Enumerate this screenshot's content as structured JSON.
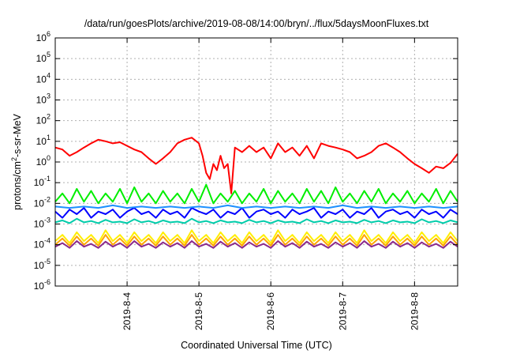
{
  "chart_data": {
    "type": "line",
    "title": "/data/run/goesPlots/archive/2019-08-08/14:00/bryn/../flux/5daysMoonFluxes.txt",
    "xlabel": "Coordinated Universal Time (UTC)",
    "ylabel": "protons/cm²-s-sr-MeV",
    "ylabel_parts": {
      "pre": "protons/cm",
      "sup": "2",
      "post": "-s-sr-MeV"
    },
    "yscale": "log",
    "ylim": [
      1e-06,
      1000000.0
    ],
    "xlim": [
      3.0,
      8.6
    ],
    "y_ticks": [
      {
        "value": 1e-06,
        "base": "10",
        "exp": "-6"
      },
      {
        "value": 1e-05,
        "base": "10",
        "exp": "-5"
      },
      {
        "value": 0.0001,
        "base": "10",
        "exp": "-4"
      },
      {
        "value": 0.001,
        "base": "10",
        "exp": "-3"
      },
      {
        "value": 0.01,
        "base": "10",
        "exp": "-2"
      },
      {
        "value": 0.1,
        "base": "10",
        "exp": "-1"
      },
      {
        "value": 1,
        "base": "10",
        "exp": "0"
      },
      {
        "value": 10,
        "base": "10",
        "exp": "1"
      },
      {
        "value": 100,
        "base": "10",
        "exp": "2"
      },
      {
        "value": 1000,
        "base": "10",
        "exp": "3"
      },
      {
        "value": 10000,
        "base": "10",
        "exp": "4"
      },
      {
        "value": 100000,
        "base": "10",
        "exp": "5"
      },
      {
        "value": 1000000,
        "base": "10",
        "exp": "6"
      }
    ],
    "x_ticks": [
      {
        "value": 4,
        "label": "2019-8-4"
      },
      {
        "value": 5,
        "label": "2019-8-5"
      },
      {
        "value": 6,
        "label": "2019-8-6"
      },
      {
        "value": 7,
        "label": "2019-8-7"
      },
      {
        "value": 8,
        "label": "2019-8-8"
      }
    ],
    "grid": true,
    "series": [
      {
        "color": "#ff0000",
        "x": [
          3.0,
          3.1,
          3.2,
          3.3,
          3.4,
          3.5,
          3.6,
          3.7,
          3.8,
          3.9,
          4.0,
          4.1,
          4.2,
          4.3,
          4.4,
          4.5,
          4.6,
          4.7,
          4.8,
          4.9,
          5.0,
          5.05,
          5.1,
          5.15,
          5.2,
          5.25,
          5.3,
          5.35,
          5.4,
          5.45,
          5.5,
          5.6,
          5.7,
          5.8,
          5.9,
          6.0,
          6.1,
          6.2,
          6.3,
          6.4,
          6.5,
          6.6,
          6.7,
          6.8,
          6.9,
          7.0,
          7.1,
          7.2,
          7.3,
          7.4,
          7.5,
          7.6,
          7.7,
          7.8,
          7.9,
          8.0,
          8.1,
          8.2,
          8.3,
          8.4,
          8.5,
          8.6
        ],
        "y": [
          5,
          4,
          2,
          3,
          5,
          8,
          12,
          10,
          8,
          9,
          6,
          4,
          3,
          1.5,
          0.8,
          1.5,
          3,
          8,
          12,
          15,
          8,
          2,
          0.3,
          0.15,
          0.8,
          0.4,
          2,
          0.5,
          0.8,
          0.03,
          5,
          3,
          6,
          3,
          5,
          1.5,
          8,
          3,
          5,
          2,
          6,
          1.5,
          8,
          6,
          5,
          4,
          3,
          1.5,
          2,
          3,
          6,
          8,
          5,
          3,
          1.5,
          0.8,
          0.5,
          0.3,
          0.6,
          0.5,
          0.9,
          2.5
        ]
      },
      {
        "color": "#00ee00",
        "x": [
          3.0,
          3.1,
          3.2,
          3.3,
          3.4,
          3.5,
          3.6,
          3.7,
          3.8,
          3.9,
          4.0,
          4.1,
          4.2,
          4.3,
          4.4,
          4.5,
          4.6,
          4.7,
          4.8,
          4.9,
          5.0,
          5.1,
          5.2,
          5.3,
          5.4,
          5.5,
          5.6,
          5.7,
          5.8,
          5.9,
          6.0,
          6.1,
          6.2,
          6.3,
          6.4,
          6.5,
          6.6,
          6.7,
          6.8,
          6.9,
          7.0,
          7.1,
          7.2,
          7.3,
          7.4,
          7.5,
          7.6,
          7.7,
          7.8,
          7.9,
          8.0,
          8.1,
          8.2,
          8.3,
          8.4,
          8.5,
          8.6
        ],
        "y": [
          0.012,
          0.03,
          0.01,
          0.05,
          0.012,
          0.04,
          0.01,
          0.03,
          0.012,
          0.05,
          0.01,
          0.06,
          0.012,
          0.03,
          0.01,
          0.04,
          0.012,
          0.03,
          0.01,
          0.05,
          0.012,
          0.08,
          0.01,
          0.03,
          0.012,
          0.04,
          0.01,
          0.03,
          0.012,
          0.05,
          0.01,
          0.04,
          0.012,
          0.03,
          0.01,
          0.05,
          0.012,
          0.04,
          0.01,
          0.06,
          0.012,
          0.03,
          0.01,
          0.04,
          0.012,
          0.05,
          0.01,
          0.03,
          0.012,
          0.04,
          0.01,
          0.03,
          0.012,
          0.05,
          0.01,
          0.04,
          0.012
        ]
      },
      {
        "color": "#0000ff",
        "x": [
          3.0,
          3.1,
          3.2,
          3.3,
          3.4,
          3.5,
          3.6,
          3.7,
          3.8,
          3.9,
          4.0,
          4.1,
          4.2,
          4.3,
          4.4,
          4.5,
          4.6,
          4.7,
          4.8,
          4.9,
          5.0,
          5.1,
          5.2,
          5.3,
          5.4,
          5.5,
          5.6,
          5.7,
          5.8,
          5.9,
          6.0,
          6.1,
          6.2,
          6.3,
          6.4,
          6.5,
          6.6,
          6.7,
          6.8,
          6.9,
          7.0,
          7.1,
          7.2,
          7.3,
          7.4,
          7.5,
          7.6,
          7.7,
          7.8,
          7.9,
          8.0,
          8.1,
          8.2,
          8.3,
          8.4,
          8.5,
          8.6
        ],
        "y": [
          0.004,
          0.002,
          0.005,
          0.003,
          0.006,
          0.002,
          0.004,
          0.003,
          0.005,
          0.002,
          0.004,
          0.006,
          0.003,
          0.004,
          0.002,
          0.005,
          0.003,
          0.004,
          0.002,
          0.006,
          0.004,
          0.003,
          0.005,
          0.002,
          0.004,
          0.003,
          0.006,
          0.002,
          0.004,
          0.005,
          0.003,
          0.004,
          0.002,
          0.005,
          0.003,
          0.004,
          0.006,
          0.002,
          0.004,
          0.003,
          0.005,
          0.002,
          0.004,
          0.003,
          0.006,
          0.002,
          0.004,
          0.005,
          0.003,
          0.004,
          0.002,
          0.005,
          0.003,
          0.004,
          0.002,
          0.005,
          0.003
        ]
      },
      {
        "color": "#1e90ff",
        "x": [
          3.0,
          3.2,
          3.4,
          3.6,
          3.8,
          4.0,
          4.2,
          4.4,
          4.6,
          4.8,
          5.0,
          5.2,
          5.4,
          5.6,
          5.8,
          6.0,
          6.2,
          6.4,
          6.6,
          6.8,
          7.0,
          7.2,
          7.4,
          7.6,
          7.8,
          8.0,
          8.2,
          8.4,
          8.6
        ],
        "y": [
          0.007,
          0.006,
          0.007,
          0.006,
          0.008,
          0.006,
          0.007,
          0.006,
          0.007,
          0.006,
          0.007,
          0.006,
          0.008,
          0.006,
          0.007,
          0.006,
          0.007,
          0.006,
          0.007,
          0.006,
          0.008,
          0.006,
          0.007,
          0.006,
          0.007,
          0.006,
          0.007,
          0.006,
          0.007
        ]
      },
      {
        "color": "#00ccaa",
        "x": [
          3.0,
          3.1,
          3.2,
          3.3,
          3.4,
          3.5,
          3.6,
          3.7,
          3.8,
          3.9,
          4.0,
          4.1,
          4.2,
          4.3,
          4.4,
          4.5,
          4.6,
          4.7,
          4.8,
          4.9,
          5.0,
          5.1,
          5.2,
          5.3,
          5.4,
          5.5,
          5.6,
          5.7,
          5.8,
          5.9,
          6.0,
          6.1,
          6.2,
          6.3,
          6.4,
          6.5,
          6.6,
          6.7,
          6.8,
          6.9,
          7.0,
          7.1,
          7.2,
          7.3,
          7.4,
          7.5,
          7.6,
          7.7,
          7.8,
          7.9,
          8.0,
          8.1,
          8.2,
          8.3,
          8.4,
          8.5,
          8.6
        ],
        "y": [
          0.0012,
          0.0015,
          0.0011,
          0.0018,
          0.0012,
          0.0014,
          0.0011,
          0.0016,
          0.0012,
          0.0013,
          0.0011,
          0.0017,
          0.0012,
          0.0014,
          0.0011,
          0.0015,
          0.0012,
          0.0013,
          0.0011,
          0.0018,
          0.0012,
          0.0014,
          0.0011,
          0.0015,
          0.0012,
          0.0013,
          0.0011,
          0.0016,
          0.0012,
          0.0014,
          0.0011,
          0.0015,
          0.0012,
          0.0013,
          0.0011,
          0.0017,
          0.0012,
          0.0014,
          0.0011,
          0.0015,
          0.0012,
          0.0013,
          0.0011,
          0.0016,
          0.0012,
          0.0014,
          0.0011,
          0.0015,
          0.0012,
          0.0013,
          0.0011,
          0.0017,
          0.0012,
          0.0014,
          0.0011,
          0.0015,
          0.0012
        ]
      },
      {
        "color": "#ffee00",
        "x": [
          3.0,
          3.1,
          3.2,
          3.3,
          3.4,
          3.5,
          3.6,
          3.7,
          3.8,
          3.9,
          4.0,
          4.1,
          4.2,
          4.3,
          4.4,
          4.5,
          4.6,
          4.7,
          4.8,
          4.9,
          5.0,
          5.1,
          5.2,
          5.3,
          5.4,
          5.5,
          5.6,
          5.7,
          5.8,
          5.9,
          6.0,
          6.1,
          6.2,
          6.3,
          6.4,
          6.5,
          6.6,
          6.7,
          6.8,
          6.9,
          7.0,
          7.1,
          7.2,
          7.3,
          7.4,
          7.5,
          7.6,
          7.7,
          7.8,
          7.9,
          8.0,
          8.1,
          8.2,
          8.3,
          8.4,
          8.5,
          8.6
        ],
        "y": [
          0.00015,
          0.0003,
          0.00012,
          0.0004,
          0.00015,
          0.0003,
          0.00012,
          0.0005,
          0.00015,
          0.0003,
          0.00012,
          0.0004,
          0.00015,
          0.0003,
          0.00012,
          0.0004,
          0.00015,
          0.0003,
          0.00012,
          0.0005,
          0.00015,
          0.0003,
          0.00012,
          0.0004,
          0.00015,
          0.0003,
          0.00012,
          0.0004,
          0.00015,
          0.0003,
          0.00012,
          0.0005,
          0.00015,
          0.0003,
          0.00012,
          0.0004,
          0.00015,
          0.0003,
          0.00012,
          0.0004,
          0.00015,
          0.0003,
          0.00012,
          0.0005,
          0.00015,
          0.0003,
          0.00012,
          0.0004,
          0.00015,
          0.0003,
          0.00012,
          0.0004,
          0.00015,
          0.0003,
          0.00012,
          0.0004,
          0.00015
        ]
      },
      {
        "color": "#ffa500",
        "x": [
          3.0,
          3.1,
          3.2,
          3.3,
          3.4,
          3.5,
          3.6,
          3.7,
          3.8,
          3.9,
          4.0,
          4.1,
          4.2,
          4.3,
          4.4,
          4.5,
          4.6,
          4.7,
          4.8,
          4.9,
          5.0,
          5.1,
          5.2,
          5.3,
          5.4,
          5.5,
          5.6,
          5.7,
          5.8,
          5.9,
          6.0,
          6.1,
          6.2,
          6.3,
          6.4,
          6.5,
          6.6,
          6.7,
          6.8,
          6.9,
          7.0,
          7.1,
          7.2,
          7.3,
          7.4,
          7.5,
          7.6,
          7.7,
          7.8,
          7.9,
          8.0,
          8.1,
          8.2,
          8.3,
          8.4,
          8.5,
          8.6
        ],
        "y": [
          0.0001,
          0.0002,
          9e-05,
          0.00025,
          0.0001,
          0.0002,
          9e-05,
          0.0003,
          0.0001,
          0.0002,
          9e-05,
          0.00025,
          0.0001,
          0.0002,
          9e-05,
          0.00025,
          0.0001,
          0.0002,
          9e-05,
          0.0003,
          0.0001,
          0.0002,
          9e-05,
          0.00025,
          0.0001,
          0.0002,
          9e-05,
          0.00025,
          0.0001,
          0.0002,
          9e-05,
          0.0003,
          0.0001,
          0.0002,
          9e-05,
          0.00025,
          0.0001,
          0.0002,
          9e-05,
          0.00025,
          0.0001,
          0.0002,
          9e-05,
          0.0003,
          0.0001,
          0.0002,
          9e-05,
          0.00025,
          0.0001,
          0.0002,
          9e-05,
          0.00025,
          0.0001,
          0.0002,
          9e-05,
          0.00025,
          0.0001
        ]
      },
      {
        "color": "#8b2a8b",
        "x": [
          3.0,
          3.1,
          3.2,
          3.3,
          3.4,
          3.5,
          3.6,
          3.7,
          3.8,
          3.9,
          4.0,
          4.1,
          4.2,
          4.3,
          4.4,
          4.5,
          4.6,
          4.7,
          4.8,
          4.9,
          5.0,
          5.1,
          5.2,
          5.3,
          5.4,
          5.5,
          5.6,
          5.7,
          5.8,
          5.9,
          6.0,
          6.1,
          6.2,
          6.3,
          6.4,
          6.5,
          6.6,
          6.7,
          6.8,
          6.9,
          7.0,
          7.1,
          7.2,
          7.3,
          7.4,
          7.5,
          7.6,
          7.7,
          7.8,
          7.9,
          8.0,
          8.1,
          8.2,
          8.3,
          8.4,
          8.5,
          8.6
        ],
        "y": [
          8e-05,
          0.00012,
          7e-05,
          0.00015,
          8e-05,
          0.00011,
          7e-05,
          0.00014,
          8e-05,
          0.00012,
          7e-05,
          0.00015,
          8e-05,
          0.00011,
          7e-05,
          0.00013,
          8e-05,
          0.00012,
          7e-05,
          0.00015,
          8e-05,
          0.00011,
          7e-05,
          0.00014,
          8e-05,
          0.00012,
          7e-05,
          0.00013,
          8e-05,
          0.00011,
          7e-05,
          0.00015,
          8e-05,
          0.00012,
          7e-05,
          0.00014,
          8e-05,
          0.00011,
          7e-05,
          0.00013,
          8e-05,
          0.00012,
          7e-05,
          0.00015,
          8e-05,
          0.00011,
          7e-05,
          0.00014,
          8e-05,
          0.00012,
          7e-05,
          0.00013,
          8e-05,
          0.00011,
          7e-05,
          0.00014,
          8e-05
        ]
      }
    ]
  }
}
